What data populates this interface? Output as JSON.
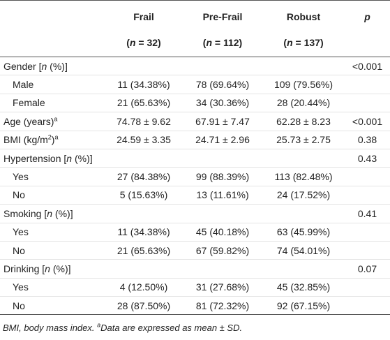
{
  "header": {
    "columns": [
      {
        "name": "Frail",
        "n": [
          {
            "text": "("
          },
          {
            "text": "n",
            "style": "i"
          },
          {
            "text": " = 32)"
          }
        ]
      },
      {
        "name": "Pre-Frail",
        "n": [
          {
            "text": "("
          },
          {
            "text": "n",
            "style": "i"
          },
          {
            "text": " = 112)"
          }
        ]
      },
      {
        "name": "Robust",
        "n": [
          {
            "text": "("
          },
          {
            "text": "n",
            "style": "i"
          },
          {
            "text": " = 137)"
          }
        ]
      }
    ],
    "p": [
      {
        "text": "p",
        "style": "i"
      }
    ]
  },
  "table": {
    "rows": [
      {
        "label": [
          {
            "text": "Gender ["
          },
          {
            "text": "n",
            "style": "i"
          },
          {
            "text": " (%)]"
          }
        ],
        "p": "<0.001"
      },
      {
        "label": [
          {
            "text": "Male"
          }
        ],
        "indent": true,
        "cells": [
          "11 (34.38%)",
          "78 (69.64%)",
          "109 (79.56%)"
        ]
      },
      {
        "label": [
          {
            "text": "Female"
          }
        ],
        "indent": true,
        "cells": [
          "21 (65.63%)",
          "34 (30.36%)",
          "28 (20.44%)"
        ]
      },
      {
        "label": [
          {
            "text": "Age (years)"
          },
          {
            "text": "a",
            "style": "sup"
          }
        ],
        "cells": [
          "74.78 ± 9.62",
          "67.91 ± 7.47",
          "62.28 ± 8.23"
        ],
        "p": "<0.001"
      },
      {
        "label": [
          {
            "text": "BMI (kg/m"
          },
          {
            "text": "2",
            "style": "sup"
          },
          {
            "text": ")"
          },
          {
            "text": "a",
            "style": "sup"
          }
        ],
        "cells": [
          "24.59 ± 3.35",
          "24.71 ± 2.96",
          "25.73 ± 2.75"
        ],
        "p": "0.38"
      },
      {
        "label": [
          {
            "text": "Hypertension ["
          },
          {
            "text": "n",
            "style": "i"
          },
          {
            "text": " (%)]"
          }
        ],
        "p": "0.43"
      },
      {
        "label": [
          {
            "text": "Yes"
          }
        ],
        "indent": true,
        "cells": [
          "27 (84.38%)",
          "99 (88.39%)",
          "113 (82.48%)"
        ]
      },
      {
        "label": [
          {
            "text": "No"
          }
        ],
        "indent": true,
        "cells": [
          "5 (15.63%)",
          "13 (11.61%)",
          "24 (17.52%)"
        ]
      },
      {
        "label": [
          {
            "text": "Smoking ["
          },
          {
            "text": "n",
            "style": "i"
          },
          {
            "text": " (%)]"
          }
        ],
        "p": "0.41"
      },
      {
        "label": [
          {
            "text": "Yes"
          }
        ],
        "indent": true,
        "cells": [
          "11 (34.38%)",
          "45 (40.18%)",
          "63 (45.99%)"
        ]
      },
      {
        "label": [
          {
            "text": "No"
          }
        ],
        "indent": true,
        "cells": [
          "21 (65.63%)",
          "67 (59.82%)",
          "74 (54.01%)"
        ]
      },
      {
        "label": [
          {
            "text": "Drinking ["
          },
          {
            "text": "n",
            "style": "i"
          },
          {
            "text": " (%)]"
          }
        ],
        "p": "0.07"
      },
      {
        "label": [
          {
            "text": "Yes"
          }
        ],
        "indent": true,
        "cells": [
          "4 (12.50%)",
          "31 (27.68%)",
          "45 (32.85%)"
        ]
      },
      {
        "label": [
          {
            "text": "No"
          }
        ],
        "indent": true,
        "cells": [
          "28 (87.50%)",
          "81 (72.32%)",
          "92 (67.15%)"
        ]
      }
    ]
  },
  "footnote": [
    {
      "text": "BMI, body mass index. "
    },
    {
      "text": "a",
      "style": "sup"
    },
    {
      "text": "Data are expressed as mean ± SD."
    }
  ]
}
